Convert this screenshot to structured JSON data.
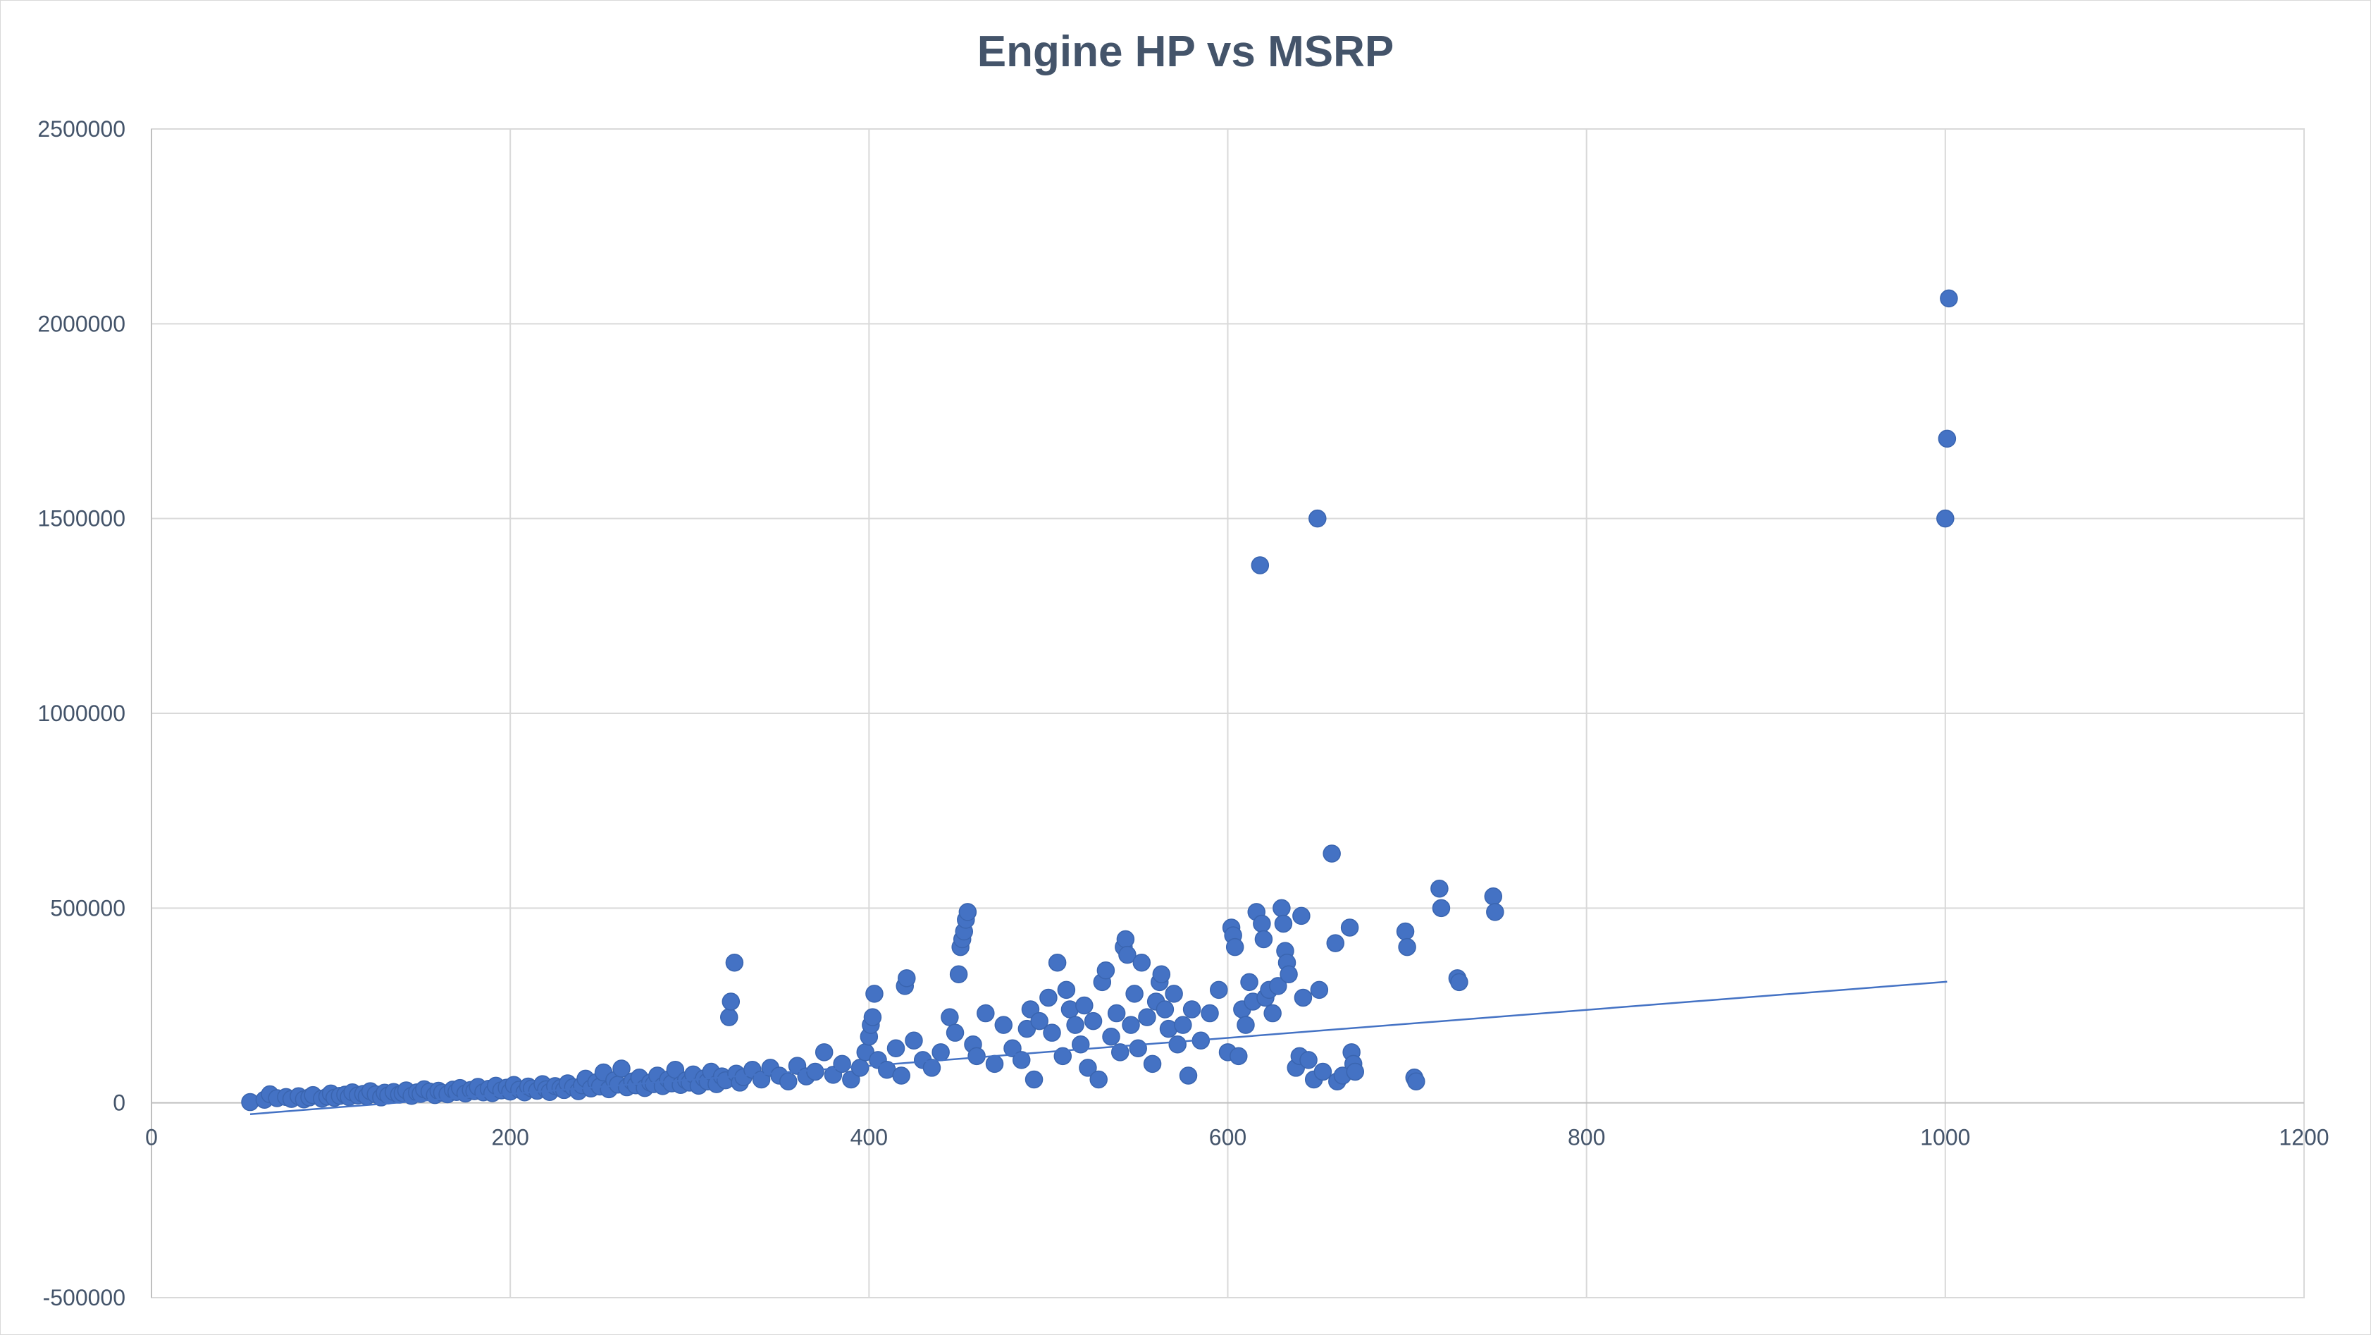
{
  "chart_data": {
    "type": "scatter",
    "title": "Engine HP vs MSRP",
    "xlabel": "",
    "ylabel": "",
    "xlim": [
      0,
      1200
    ],
    "ylim": [
      -500000,
      2500000
    ],
    "x_ticks": [
      0,
      200,
      400,
      600,
      800,
      1000,
      1200
    ],
    "y_ticks": [
      -500000,
      0,
      500000,
      1000000,
      1500000,
      2000000,
      2500000
    ],
    "grid": true,
    "legend": "none",
    "colors": {
      "marker": "#4472c4",
      "trendline": "#4472c4",
      "grid": "#d9d9d9",
      "text": "#44546a"
    },
    "trendline": {
      "type": "linear",
      "x_range": [
        55,
        1001
      ],
      "y_start": -29000,
      "y_end": 311000
    },
    "series": [
      {
        "values": [
          [
            55,
            2000
          ],
          [
            63,
            8000
          ],
          [
            66,
            22000
          ],
          [
            70,
            12000
          ],
          [
            75,
            15000
          ],
          [
            78,
            10000
          ],
          [
            82,
            17000
          ],
          [
            85,
            9000
          ],
          [
            88,
            14000
          ],
          [
            90,
            20000
          ],
          [
            95,
            11000
          ],
          [
            98,
            16000
          ],
          [
            100,
            24000
          ],
          [
            102,
            13000
          ],
          [
            105,
            18000
          ],
          [
            108,
            21000
          ],
          [
            110,
            15000
          ],
          [
            112,
            27000
          ],
          [
            115,
            19000
          ],
          [
            118,
            23000
          ],
          [
            120,
            17000
          ],
          [
            122,
            30000
          ],
          [
            125,
            22000
          ],
          [
            128,
            14000
          ],
          [
            130,
            26000
          ],
          [
            132,
            19000
          ],
          [
            135,
            28000
          ],
          [
            138,
            21000
          ],
          [
            140,
            25000
          ],
          [
            142,
            32000
          ],
          [
            145,
            18000
          ],
          [
            148,
            27000
          ],
          [
            150,
            23000
          ],
          [
            152,
            35000
          ],
          [
            155,
            29000
          ],
          [
            158,
            20000
          ],
          [
            160,
            31000
          ],
          [
            162,
            26000
          ],
          [
            165,
            22000
          ],
          [
            168,
            34000
          ],
          [
            170,
            28000
          ],
          [
            172,
            38000
          ],
          [
            175,
            24000
          ],
          [
            178,
            33000
          ],
          [
            180,
            30000
          ],
          [
            182,
            41000
          ],
          [
            185,
            27000
          ],
          [
            188,
            36000
          ],
          [
            190,
            25000
          ],
          [
            192,
            44000
          ],
          [
            195,
            32000
          ],
          [
            198,
            39000
          ],
          [
            200,
            29000
          ],
          [
            202,
            46000
          ],
          [
            205,
            34000
          ],
          [
            208,
            27000
          ],
          [
            210,
            42000
          ],
          [
            212,
            37000
          ],
          [
            215,
            31000
          ],
          [
            218,
            48000
          ],
          [
            220,
            35000
          ],
          [
            222,
            28000
          ],
          [
            225,
            43000
          ],
          [
            228,
            38000
          ],
          [
            230,
            33000
          ],
          [
            232,
            50000
          ],
          [
            235,
            40000
          ],
          [
            238,
            30000
          ],
          [
            240,
            45000
          ],
          [
            242,
            62000
          ],
          [
            245,
            37000
          ],
          [
            248,
            53000
          ],
          [
            250,
            42000
          ],
          [
            252,
            78000
          ],
          [
            255,
            35000
          ],
          [
            258,
            58000
          ],
          [
            260,
            47000
          ],
          [
            262,
            88000
          ],
          [
            265,
            40000
          ],
          [
            268,
            55000
          ],
          [
            270,
            45000
          ],
          [
            272,
            65000
          ],
          [
            275,
            38000
          ],
          [
            278,
            52000
          ],
          [
            280,
            48000
          ],
          [
            282,
            70000
          ],
          [
            285,
            43000
          ],
          [
            288,
            60000
          ],
          [
            290,
            50000
          ],
          [
            292,
            85000
          ],
          [
            295,
            46000
          ],
          [
            298,
            58000
          ],
          [
            300,
            52000
          ],
          [
            302,
            73000
          ],
          [
            305,
            44000
          ],
          [
            308,
            63000
          ],
          [
            310,
            55000
          ],
          [
            312,
            80000
          ],
          [
            315,
            48000
          ],
          [
            318,
            68000
          ],
          [
            320,
            58000
          ],
          [
            322,
            220000
          ],
          [
            323,
            260000
          ],
          [
            325,
            360000
          ],
          [
            326,
            75000
          ],
          [
            328,
            52000
          ],
          [
            330,
            66000
          ],
          [
            335,
            85000
          ],
          [
            340,
            60000
          ],
          [
            345,
            90000
          ],
          [
            350,
            70000
          ],
          [
            355,
            55000
          ],
          [
            360,
            95000
          ],
          [
            365,
            68000
          ],
          [
            370,
            80000
          ],
          [
            375,
            130000
          ],
          [
            380,
            72000
          ],
          [
            385,
            100000
          ],
          [
            390,
            60000
          ],
          [
            395,
            90000
          ],
          [
            398,
            130000
          ],
          [
            400,
            170000
          ],
          [
            401,
            200000
          ],
          [
            402,
            220000
          ],
          [
            403,
            280000
          ],
          [
            405,
            110000
          ],
          [
            410,
            85000
          ],
          [
            415,
            140000
          ],
          [
            418,
            70000
          ],
          [
            420,
            300000
          ],
          [
            421,
            320000
          ],
          [
            425,
            160000
          ],
          [
            430,
            110000
          ],
          [
            435,
            90000
          ],
          [
            440,
            130000
          ],
          [
            445,
            220000
          ],
          [
            448,
            180000
          ],
          [
            450,
            330000
          ],
          [
            451,
            400000
          ],
          [
            452,
            420000
          ],
          [
            453,
            440000
          ],
          [
            454,
            470000
          ],
          [
            455,
            490000
          ],
          [
            458,
            150000
          ],
          [
            460,
            120000
          ],
          [
            465,
            230000
          ],
          [
            470,
            100000
          ],
          [
            475,
            200000
          ],
          [
            480,
            140000
          ],
          [
            485,
            110000
          ],
          [
            488,
            190000
          ],
          [
            490,
            240000
          ],
          [
            492,
            60000
          ],
          [
            495,
            210000
          ],
          [
            500,
            270000
          ],
          [
            502,
            180000
          ],
          [
            505,
            360000
          ],
          [
            508,
            120000
          ],
          [
            510,
            290000
          ],
          [
            512,
            240000
          ],
          [
            515,
            200000
          ],
          [
            518,
            150000
          ],
          [
            520,
            250000
          ],
          [
            522,
            90000
          ],
          [
            525,
            210000
          ],
          [
            528,
            60000
          ],
          [
            530,
            310000
          ],
          [
            532,
            340000
          ],
          [
            535,
            170000
          ],
          [
            538,
            230000
          ],
          [
            540,
            130000
          ],
          [
            542,
            400000
          ],
          [
            543,
            420000
          ],
          [
            544,
            380000
          ],
          [
            546,
            200000
          ],
          [
            548,
            280000
          ],
          [
            550,
            140000
          ],
          [
            552,
            360000
          ],
          [
            555,
            220000
          ],
          [
            558,
            100000
          ],
          [
            560,
            260000
          ],
          [
            562,
            310000
          ],
          [
            563,
            330000
          ],
          [
            565,
            240000
          ],
          [
            567,
            190000
          ],
          [
            570,
            280000
          ],
          [
            572,
            150000
          ],
          [
            575,
            200000
          ],
          [
            578,
            70000
          ],
          [
            580,
            240000
          ],
          [
            585,
            160000
          ],
          [
            590,
            230000
          ],
          [
            595,
            290000
          ],
          [
            600,
            130000
          ],
          [
            602,
            450000
          ],
          [
            603,
            430000
          ],
          [
            604,
            400000
          ],
          [
            606,
            120000
          ],
          [
            608,
            240000
          ],
          [
            610,
            200000
          ],
          [
            612,
            310000
          ],
          [
            614,
            260000
          ],
          [
            616,
            490000
          ],
          [
            618,
            1380000
          ],
          [
            619,
            460000
          ],
          [
            620,
            420000
          ],
          [
            621,
            270000
          ],
          [
            623,
            290000
          ],
          [
            625,
            230000
          ],
          [
            628,
            300000
          ],
          [
            630,
            500000
          ],
          [
            631,
            460000
          ],
          [
            632,
            390000
          ],
          [
            633,
            360000
          ],
          [
            634,
            330000
          ],
          [
            638,
            90000
          ],
          [
            640,
            120000
          ],
          [
            641,
            480000
          ],
          [
            642,
            270000
          ],
          [
            645,
            110000
          ],
          [
            648,
            60000
          ],
          [
            650,
            1500000
          ],
          [
            651,
            290000
          ],
          [
            653,
            80000
          ],
          [
            658,
            640000
          ],
          [
            660,
            410000
          ],
          [
            661,
            55000
          ],
          [
            664,
            70000
          ],
          [
            668,
            450000
          ],
          [
            669,
            130000
          ],
          [
            670,
            100000
          ],
          [
            671,
            80000
          ],
          [
            699,
            440000
          ],
          [
            700,
            400000
          ],
          [
            704,
            65000
          ],
          [
            705,
            55000
          ],
          [
            718,
            550000
          ],
          [
            719,
            500000
          ],
          [
            728,
            320000
          ],
          [
            729,
            310000
          ],
          [
            748,
            530000
          ],
          [
            749,
            490000
          ],
          [
            1000,
            1500000
          ],
          [
            1001,
            1705000
          ],
          [
            1002,
            2065000
          ]
        ]
      }
    ]
  }
}
